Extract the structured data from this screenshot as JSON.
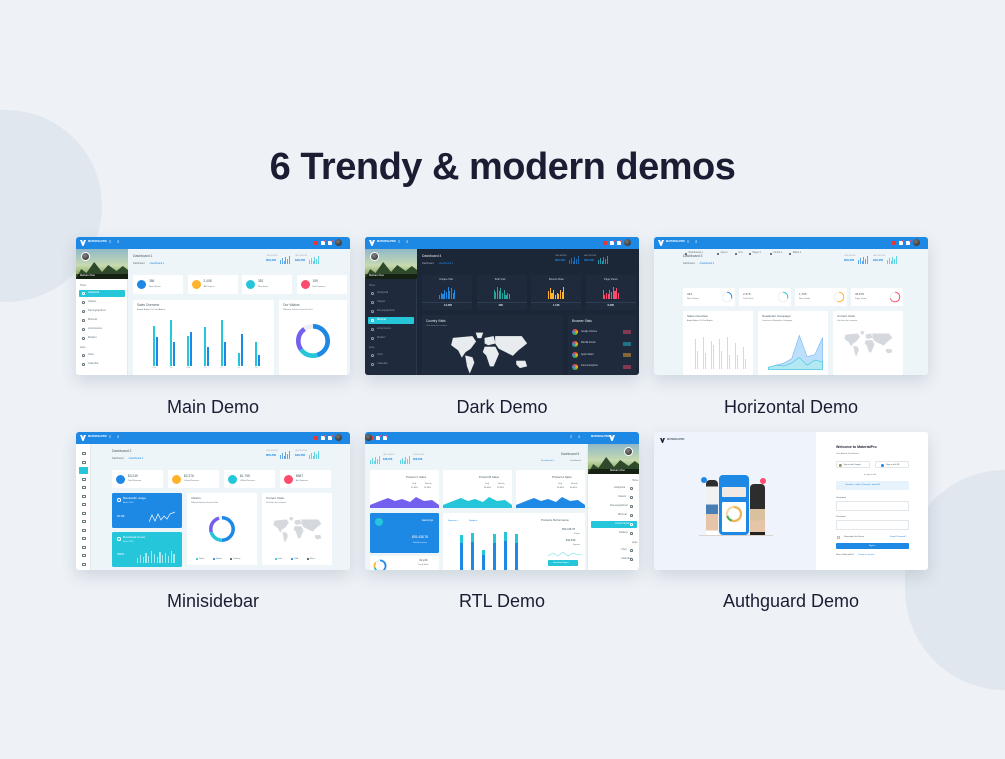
{
  "title": "6 Trendy & modern demos",
  "brand": "MATERIALPRO",
  "this_month": {
    "label": "THIS MONTH",
    "value": "$58,356"
  },
  "last_month": {
    "label": "LAST MONTH",
    "value": "$48,356"
  },
  "colors": {
    "blue": "#1e88e5",
    "cyan": "#26c6da",
    "orange": "#ffb22b",
    "red": "#fc4b6c",
    "purple": "#7460ee",
    "dark_bg": "#1b2636"
  },
  "demos": [
    {
      "label": "Main Demo",
      "page": "Dashboard 1",
      "crumb": "Dashboard",
      "user": "Markarn Doe",
      "nav_home": "Home",
      "nav": [
        "Analytical",
        "Classic",
        "Demographical",
        "Minimal",
        "eCommerce",
        "Modern"
      ],
      "active": 0,
      "nav_apps": "Apps",
      "apps": [
        "Chat",
        "Calendar"
      ],
      "stats": [
        {
          "value": "386",
          "label": "New Clients",
          "color": "#1e88e5"
        },
        {
          "value": "2,408",
          "label": "All Projects",
          "color": "#ffb22b"
        },
        {
          "value": "352",
          "label": "New Items",
          "color": "#26c6da"
        },
        {
          "value": "159",
          "label": "New Invoices",
          "color": "#fc4b6c"
        }
      ],
      "sales": {
        "title": "Sales Overview",
        "subtitle": "Ample Admin Vs Pixel Admin",
        "days": [
          "Mon",
          "Tue",
          "Wed",
          "Thu",
          "Fri",
          "Sat",
          "Sun"
        ],
        "a": [
          80,
          92,
          60,
          78,
          92,
          26,
          48
        ],
        "b": [
          58,
          48,
          68,
          38,
          48,
          65,
          22
        ]
      },
      "visitors": {
        "title": "Our Visitors",
        "subtitle": "Different Devices Used to Visit"
      }
    },
    {
      "label": "Dark Demo",
      "page": "Dashboard 4",
      "crumb": "Dashboard",
      "user": "Markarn Doe",
      "nav_home": "Home",
      "nav": [
        "Analytical",
        "Classic",
        "Demographical",
        "Minimal",
        "eCommerce",
        "Modern"
      ],
      "active": 3,
      "nav_apps": "Apps",
      "apps": [
        "Chat",
        "Calendar"
      ],
      "tiles": [
        {
          "title": "Unique Visit",
          "value": "12,456",
          "color": "#1e88e5"
        },
        {
          "title": "Total Visit",
          "value": "456",
          "color": "#26a69a"
        },
        {
          "title": "Bounce Rate",
          "value": "1.126",
          "color": "#ffb22b"
        },
        {
          "title": "Page Views",
          "value": "6,450",
          "color": "#fc4b6c"
        }
      ],
      "country": {
        "title": "Country Visits",
        "subtitle": "Visit from the contries"
      },
      "browser": {
        "title": "Browser Stats",
        "items": [
          {
            "name": "Google Chrome",
            "color": "#fc4b6c"
          },
          {
            "name": "Mozilla Firefox",
            "color": "#26c6da"
          },
          {
            "name": "Apple Safari",
            "color": "#ffb22b"
          },
          {
            "name": "Internet Explorer",
            "color": "#fc4b6c"
          }
        ]
      }
    },
    {
      "label": "Horizontal Demo",
      "page": "Dashboard 3",
      "crumb": "Dashboard",
      "menu": [
        "Dashboards",
        "Apps",
        "UI",
        "Pages",
        "Forms",
        "Tables"
      ],
      "stats": [
        {
          "value": "324",
          "label": "New Clients",
          "color": "#1e88e5",
          "pct": 0.3
        },
        {
          "value": "2,376",
          "label": "Total Visits",
          "color": "#26c6da",
          "pct": 0.3
        },
        {
          "value": "1,795",
          "label": "New Leads",
          "color": "#ffb22b",
          "pct": 0.55
        },
        {
          "value": "36,870",
          "label": "Page Views",
          "color": "#fc4b6c",
          "pct": 0.7
        }
      ],
      "sales": {
        "title": "Sales Overview",
        "subtitle": "Ample Admin Vs Pixel Admin",
        "a": [
          75,
          80,
          70,
          75,
          80,
          65,
          55
        ],
        "b": [
          45,
          40,
          60,
          45,
          35,
          35,
          25
        ]
      },
      "news": {
        "title": "Newsletter Campaign",
        "subtitle": "Overview of Newsletter Campaign",
        "a": [
          5,
          10,
          15,
          25,
          80,
          30,
          35,
          75
        ],
        "b": [
          5,
          10,
          8,
          15,
          28,
          10,
          22,
          18
        ]
      },
      "visits": {
        "title": "Current Visits",
        "subtitle": "Visit from the countries"
      }
    },
    {
      "label": "Minisidebar",
      "page": "Dashboard 2",
      "crumb": "Dashboard",
      "stats": [
        {
          "value": "$3,249",
          "label": "Total Revenue",
          "color": "#1e88e5"
        },
        {
          "value": "$2,376",
          "label": "Online Revenue",
          "color": "#ffb22b"
        },
        {
          "value": "$1,795",
          "label": "Offline Revenue",
          "color": "#26c6da"
        },
        {
          "value": "$687",
          "label": "Ad. Expense",
          "color": "#fc4b6c"
        }
      ],
      "bandwidth": {
        "title": "Bandwidth usage",
        "date": "March 2021",
        "value": "50 GB"
      },
      "download": {
        "title": "Download Count",
        "date": "March 2021",
        "value": "35487"
      },
      "visitors": {
        "title": "Visitors",
        "subtitle": "Different Devices Used to Visit",
        "legend": [
          "Tablet",
          "Mobile",
          "Desktop"
        ]
      },
      "visits": {
        "title": "Current Visits",
        "subtitle": "Visit from the countries",
        "legend": [
          "India",
          "USA",
          "Africa"
        ]
      }
    },
    {
      "label": "RTL Demo",
      "page": "Dashboard 5",
      "crumb": "Dashboard",
      "user": "Markarn Doe",
      "nav_home": "Home",
      "nav": [
        "Analytical",
        "Classic",
        "Demographical",
        "Minimal",
        "eCommerce",
        "Modern"
      ],
      "active": 4,
      "nav_apps": "Apps",
      "apps": [
        "Chat",
        "Calendar"
      ],
      "products": [
        {
          "title": "Product C Sales",
          "daily": "12.45%",
          "monthly": "12.50%",
          "color": "#7460ee"
        },
        {
          "title": "Product B Sales",
          "daily": "56.40%",
          "monthly": "12.45%",
          "color": "#26c6da"
        },
        {
          "title": "Product A Sales",
          "daily": "35.40%",
          "monthly": "80.40%",
          "color": "#1e88e5"
        }
      ],
      "daily_label": "Daily",
      "monthly_label": "Monthly",
      "earnings": {
        "title": "Earnings",
        "value": "$93,438.78",
        "sub": "Monthly revenue"
      },
      "yearly": {
        "value": "43,246",
        "label": "Yearly Sales"
      },
      "perf": {
        "title": "Products Performance",
        "legend": [
          "Expense",
          "Budget"
        ],
        "budget": "$93,438.78",
        "budget_label": "Budget",
        "expense": "$32,839",
        "expense_label": "Expense",
        "button": "Download Report",
        "bars": [
          70,
          75,
          40,
          72,
          76,
          72
        ]
      }
    },
    {
      "label": "Authguard Demo",
      "heading": "Welcome to MaterialPro",
      "sub": "Your Admin Dashboard",
      "google": "Sign in with Google",
      "fb": "Sign in with FB",
      "or": "or sign in with",
      "hint": "Username : admin   |   Password : admin123",
      "username": "Username",
      "password": "Password",
      "remember": "Remember this Device",
      "forgot": "Forgot Password ?",
      "signin": "Sign In",
      "new": "New to MaterialPro?",
      "create": "Create an account"
    }
  ]
}
